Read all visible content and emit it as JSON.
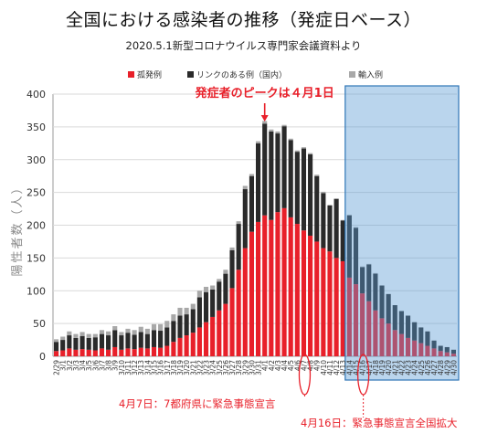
{
  "title": "全国における感染者の推移（発症日ベース）",
  "subtitle": "2020.5.1新型コロナウイルス専門家会議資料より",
  "chart_data": {
    "type": "bar",
    "stacked": true,
    "ylabel": "陽性者数（人）",
    "ylim": [
      0,
      400
    ],
    "yticks": [
      "0",
      "50",
      "100",
      "150",
      "200",
      "250",
      "300",
      "350",
      "400"
    ],
    "legend": [
      "孤発例",
      "リンクのある例（国内）",
      "輸入例"
    ],
    "legend_position": "top",
    "colors": {
      "sporadic": "#e8202a",
      "linked": "#2a2a2a",
      "imported": "#a8a8a8",
      "shade": "#5b9bd5"
    },
    "categories": [
      "2/29",
      "3/1",
      "3/2",
      "3/3",
      "3/4",
      "3/5",
      "3/6",
      "3/7",
      "3/8",
      "3/9",
      "3/10",
      "3/11",
      "3/12",
      "3/13",
      "3/14",
      "3/15",
      "3/16",
      "3/17",
      "3/18",
      "3/19",
      "3/20",
      "3/21",
      "3/22",
      "3/23",
      "3/24",
      "3/25",
      "3/26",
      "3/27",
      "3/28",
      "3/29",
      "3/30",
      "3/31",
      "4/1",
      "4/2",
      "4/3",
      "4/4",
      "4/5",
      "4/6",
      "4/7",
      "4/8",
      "4/9",
      "4/10",
      "4/11",
      "4/12",
      "4/13",
      "4/14",
      "4/15",
      "4/16",
      "4/17",
      "4/18",
      "4/19",
      "4/20",
      "4/21",
      "4/22",
      "4/23",
      "4/24",
      "4/25",
      "4/26",
      "4/27",
      "4/28",
      "4/29",
      "4/30"
    ],
    "tick_labels": [
      "2/29",
      "3/1",
      "3/2",
      "3/3",
      "3/4",
      "3/5",
      "3/6",
      "3/7",
      "3/8",
      "3/9",
      "3/10",
      "3/11",
      "3/12",
      "3/13",
      "3/14",
      "3/15",
      "3/16",
      "3/17",
      "3/18",
      "3/19",
      "3/20",
      "3/21",
      "3/22",
      "3/23",
      "3/24",
      "3/25",
      "3/26",
      "3/27",
      "3/28",
      "3/29",
      "3/30",
      "3/31",
      "4/1",
      "4/2",
      "4/3",
      "4/4",
      "4/5",
      "4/6",
      "4/7",
      "4/8",
      "4/9",
      "4/10",
      "4/11",
      "4/12",
      "4/13",
      "4/14",
      "4/15",
      "4/16",
      "4/17",
      "4/18",
      "4/19",
      "4/20",
      "4/21",
      "4/22",
      "4/23",
      "4/24",
      "4/25",
      "4/26",
      "4/27",
      "4/28",
      "4/29",
      "4/30"
    ],
    "series": [
      {
        "name": "孤発例",
        "values": [
          8,
          9,
          12,
          10,
          11,
          10,
          9,
          12,
          10,
          14,
          10,
          12,
          11,
          13,
          12,
          14,
          13,
          16,
          22,
          28,
          32,
          36,
          44,
          52,
          60,
          70,
          80,
          104,
          132,
          165,
          190,
          205,
          215,
          208,
          220,
          226,
          212,
          202,
          192,
          184,
          175,
          165,
          160,
          150,
          145,
          120,
          110,
          96,
          84,
          70,
          58,
          50,
          40,
          34,
          28,
          24,
          20,
          16,
          12,
          8,
          6,
          4
        ]
      },
      {
        "name": "リンクのある例（国内）",
        "values": [
          14,
          16,
          20,
          18,
          20,
          18,
          20,
          22,
          22,
          26,
          22,
          24,
          22,
          24,
          22,
          26,
          26,
          28,
          32,
          34,
          32,
          36,
          46,
          46,
          42,
          44,
          46,
          58,
          70,
          90,
          85,
          120,
          140,
          135,
          120,
          125,
          118,
          110,
          125,
          124,
          100,
          84,
          70,
          90,
          62,
          95,
          86,
          40,
          56,
          56,
          50,
          45,
          38,
          35,
          34,
          28,
          24,
          22,
          12,
          8,
          8,
          6
        ]
      },
      {
        "name": "輸入例",
        "values": [
          4,
          5,
          6,
          6,
          6,
          6,
          5,
          6,
          6,
          6,
          5,
          6,
          7,
          8,
          8,
          9,
          10,
          10,
          10,
          12,
          10,
          8,
          10,
          8,
          6,
          4,
          6,
          4,
          4,
          5,
          3,
          3,
          4,
          3,
          3,
          2,
          2,
          2,
          2,
          2,
          2,
          2,
          1,
          1,
          1,
          1,
          1,
          1,
          1,
          1,
          0,
          0,
          0,
          0,
          0,
          0,
          0,
          0,
          0,
          0,
          0,
          0
        ]
      }
    ],
    "shaded_from_category": "4/14",
    "annotations": {
      "peak_label": "発症者のピークは４月1日",
      "peak_category": "4/1",
      "event1_label": "4月7日：7都府県に緊急事態宣言",
      "event1_category": "4/7",
      "event2_label": "4月16日：緊急事態宣言全国拡大",
      "event2_category": "4/16"
    }
  }
}
